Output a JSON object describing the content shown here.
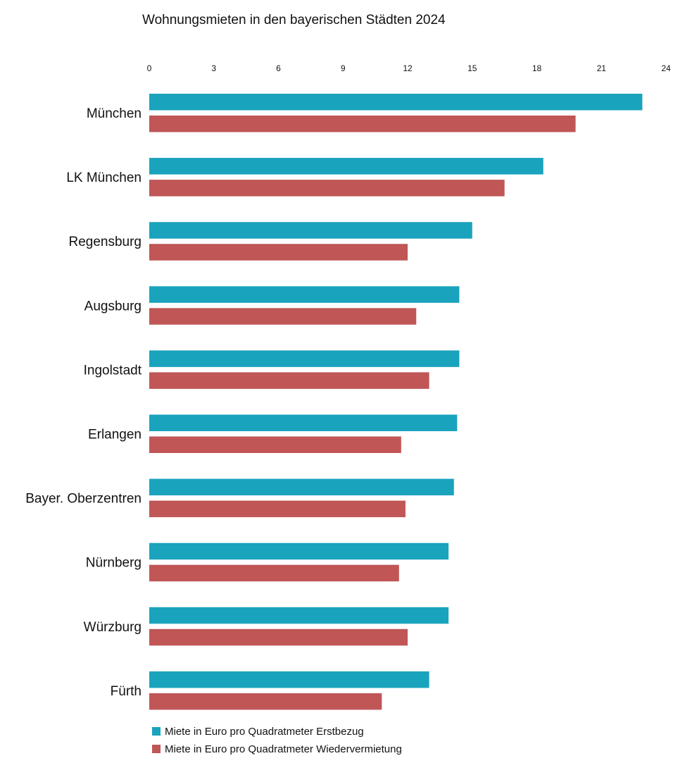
{
  "chart_data": {
    "type": "bar",
    "orientation": "horizontal",
    "title": "Wohnungsmieten in den bayerischen Städten 2024",
    "xlabel": "",
    "ylabel": "",
    "xlim": [
      0,
      24
    ],
    "x_ticks": [
      "0",
      "3",
      "6",
      "9",
      "12",
      "15",
      "18",
      "21",
      "24"
    ],
    "x_axis_position": "top",
    "grid": false,
    "legend_position": "bottom-left",
    "categories": [
      "München",
      "LK München",
      "Regensburg",
      "Augsburg",
      "Ingolstadt",
      "Erlangen",
      "Bayer. Oberzentren",
      "Nürnberg",
      "Würzburg",
      "Fürth"
    ],
    "series": [
      {
        "name": "Miete in Euro pro Quadratmeter Erstbezug",
        "color": "#1aa3bd",
        "values": [
          22.9,
          18.3,
          15.0,
          14.4,
          14.4,
          14.3,
          14.15,
          13.9,
          13.9,
          13.0
        ]
      },
      {
        "name": "Miete in Euro pro Quadratmeter Wiedervermietung",
        "color": "#c05656",
        "values": [
          19.8,
          16.5,
          12.0,
          12.4,
          13.0,
          11.7,
          11.9,
          11.6,
          12.0,
          10.8
        ]
      }
    ]
  }
}
